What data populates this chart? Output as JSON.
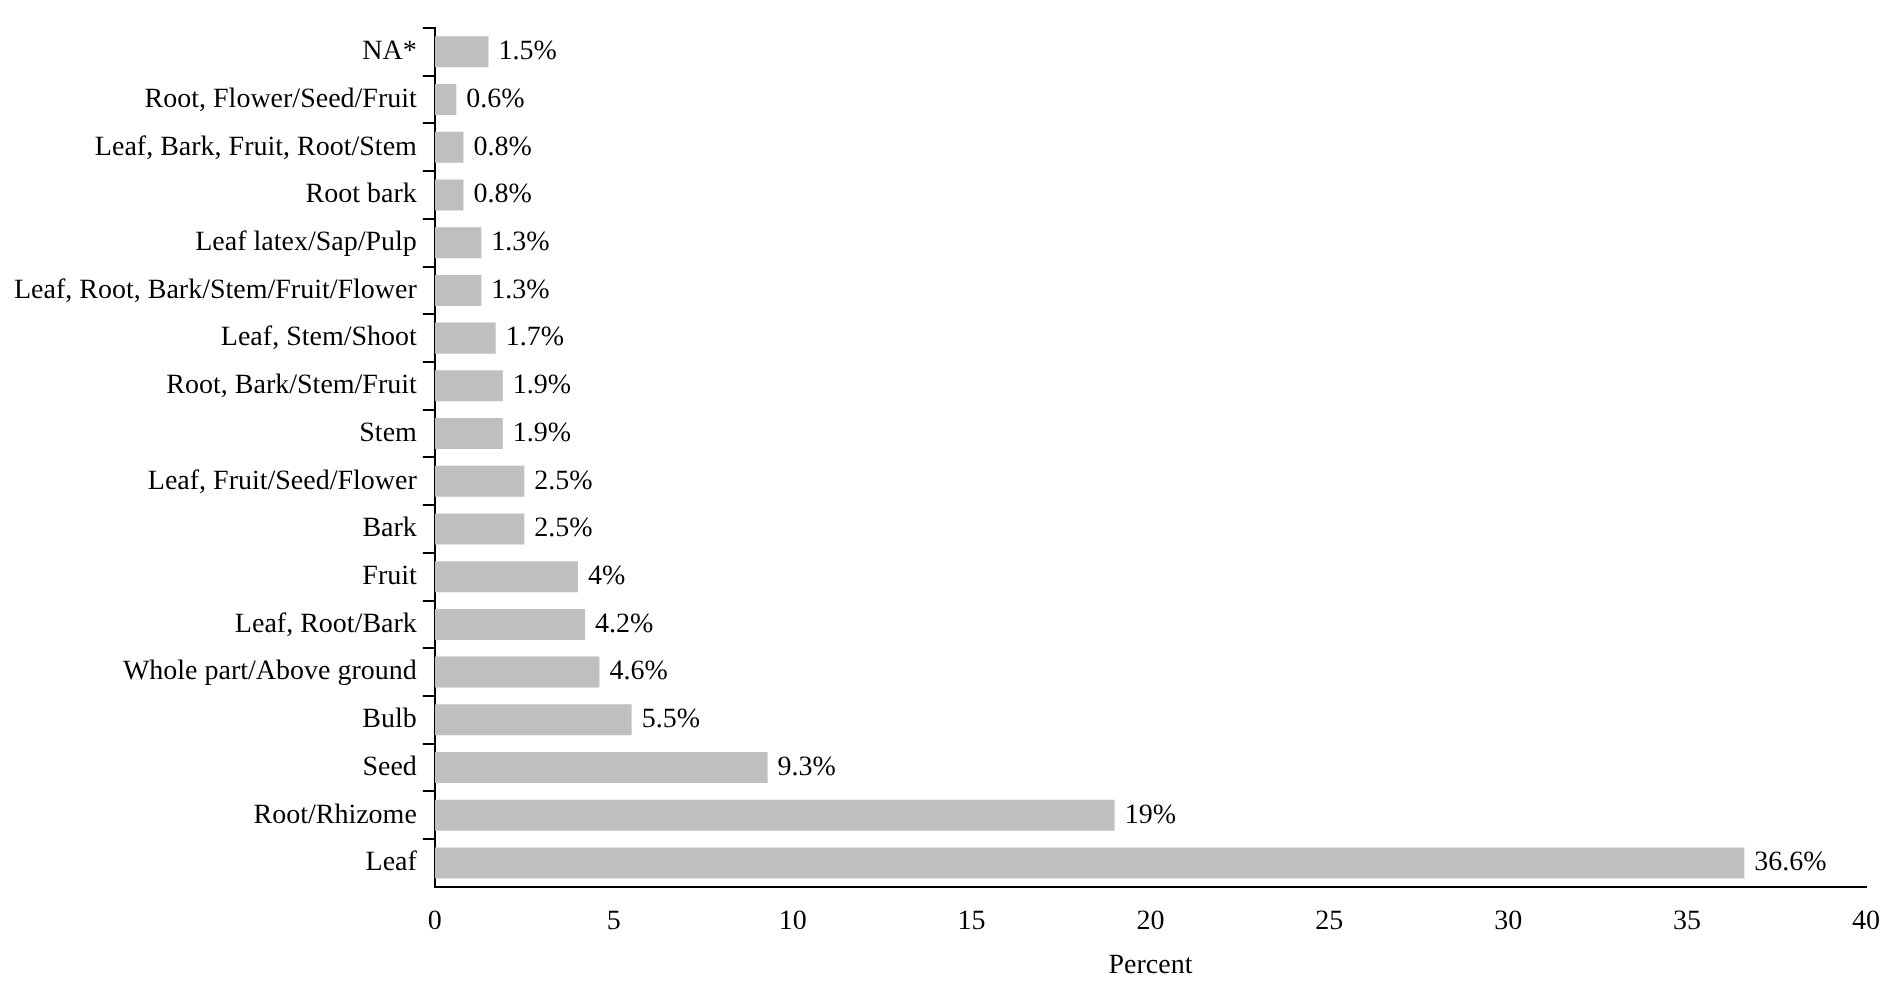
{
  "chart_data": {
    "type": "bar",
    "orientation": "horizontal",
    "xlabel": "Percent",
    "categories": [
      "NA*",
      "Root, Flower/Seed/Fruit",
      "Leaf, Bark, Fruit, Root/Stem",
      "Root bark",
      "Leaf latex/Sap/Pulp",
      "Leaf, Root, Bark/Stem/Fruit/Flower",
      "Leaf, Stem/Shoot",
      "Root, Bark/Stem/Fruit",
      "Stem",
      "Leaf, Fruit/Seed/Flower",
      "Bark",
      "Fruit",
      "Leaf, Root/Bark",
      "Whole part/Above ground",
      "Bulb",
      "Seed",
      "Root/Rhizome",
      "Leaf"
    ],
    "values": [
      1.5,
      0.6,
      0.8,
      0.8,
      1.3,
      1.3,
      1.7,
      1.9,
      1.9,
      2.5,
      2.5,
      4,
      4.2,
      4.6,
      5.5,
      9.3,
      19,
      36.6
    ],
    "value_labels": [
      "1.5%",
      "0.6%",
      "0.8%",
      "0.8%",
      "1.3%",
      "1.3%",
      "1.7%",
      "1.9%",
      "1.9%",
      "2.5%",
      "2.5%",
      "4%",
      "4.2%",
      "4.6%",
      "5.5%",
      "9.3%",
      "19%",
      "36.6%"
    ],
    "color": "#bfbfbf",
    "xlim": [
      0,
      40
    ],
    "xticks": [
      0,
      5,
      10,
      15,
      20,
      25,
      30,
      35,
      40
    ],
    "grid": false,
    "legend": false
  }
}
